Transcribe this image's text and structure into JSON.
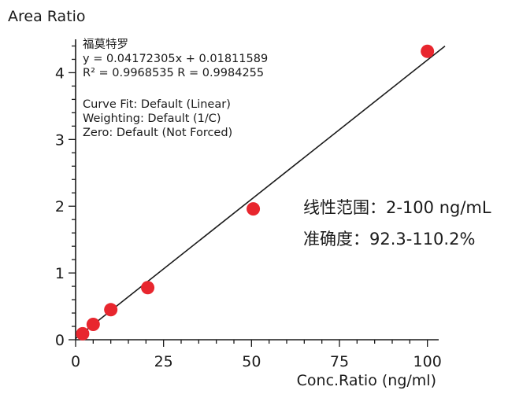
{
  "chart_data": {
    "type": "scatter",
    "ylabel": "Area Ratio",
    "xlabel": "Conc.Ratio (ng/ml)",
    "xlim": [
      0,
      105
    ],
    "ylim": [
      0,
      4.5
    ],
    "xticks": [
      "0",
      "25",
      "50",
      "75",
      "100"
    ],
    "yticks": [
      "0",
      "1",
      "2",
      "3",
      "4"
    ],
    "grid": false,
    "points": [
      {
        "x": 2,
        "y": 0.09
      },
      {
        "x": 5,
        "y": 0.23
      },
      {
        "x": 10,
        "y": 0.45
      },
      {
        "x": 20.5,
        "y": 0.78
      },
      {
        "x": 50.5,
        "y": 1.96
      },
      {
        "x": 100,
        "y": 4.32
      }
    ],
    "fit": {
      "slope": 0.04172305,
      "intercept": 0.01811589,
      "x_range": [
        0,
        105
      ]
    },
    "point_color": "#e8262e",
    "line_color": "#1a1a1a"
  },
  "annotations": {
    "compound": "福莫特罗",
    "equation": "y = 0.04172305x + 0.01811589",
    "r_values": "R² = 0.9968535     R = 0.9984255",
    "curve_fit": "Curve Fit: Default (Linear)",
    "weighting": "Weighting: Default (1/C)",
    "zero": "Zero: Default (Not Forced)"
  },
  "notes": {
    "linear_range": "线性范围：2-100 ng/mL",
    "accuracy": "准确度：92.3-110.2%"
  }
}
